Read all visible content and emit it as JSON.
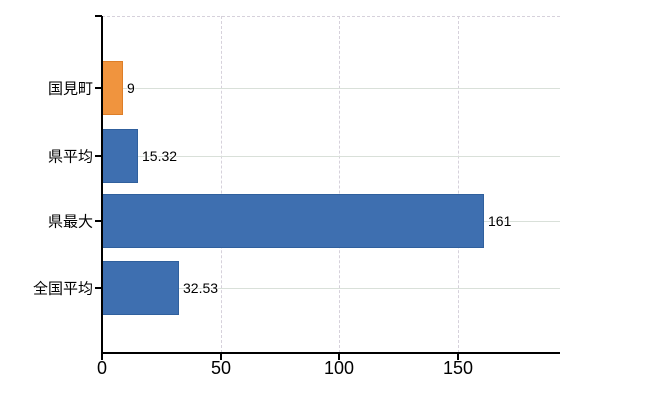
{
  "chart_data": {
    "type": "bar",
    "orientation": "horizontal",
    "title": "",
    "xlabel": "",
    "ylabel": "",
    "categories": [
      "国見町",
      "県平均",
      "県最大",
      "全国平均"
    ],
    "values": [
      9,
      15.32,
      161,
      32.53
    ],
    "value_labels": [
      "9",
      "15.32",
      "161",
      "32.53"
    ],
    "bar_colors": [
      "#F0943E",
      "#3E6FB0",
      "#3E6FB0",
      "#3E6FB0"
    ],
    "bar_border_colors": [
      "#DD7E28",
      "#30609D",
      "#30609D",
      "#30609D"
    ],
    "x_ticks": [
      0,
      50,
      100,
      150
    ],
    "x_tick_labels": [
      "0",
      "50",
      "100",
      "150"
    ],
    "xlim": [
      0,
      193.2
    ],
    "grid": true,
    "legend": false,
    "colors": {
      "accent_orange": "#F0943E",
      "accent_blue": "#3E6FB0",
      "gridline_solid": "#d9e0d9",
      "gridline_dashed": "#d6d1db",
      "axis": "#000000",
      "background": "#ffffff"
    }
  }
}
